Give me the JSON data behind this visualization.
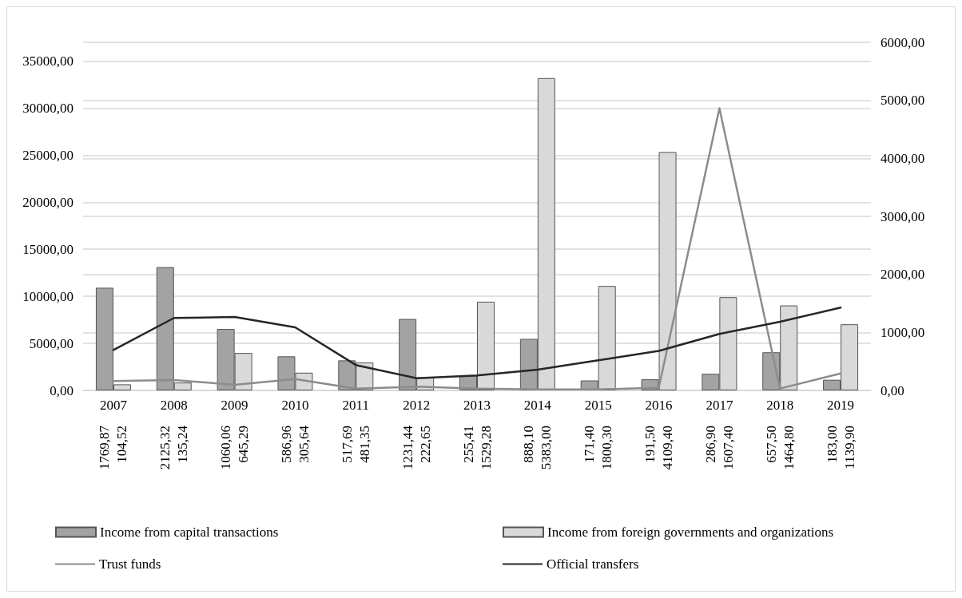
{
  "chart_data": {
    "type": "bar",
    "categories": [
      "2007",
      "2008",
      "2009",
      "2010",
      "2011",
      "2012",
      "2013",
      "2014",
      "2015",
      "2016",
      "2017",
      "2018",
      "2019"
    ],
    "series": [
      {
        "name": "Income from capital transactions",
        "axis": "y2",
        "color": "#a3a3a3",
        "values": [
          1769.87,
          2125.32,
          1060.06,
          586.96,
          517.69,
          1231.44,
          255.41,
          888.1,
          171.4,
          191.5,
          286.9,
          657.5,
          183.0
        ],
        "value_labels": [
          "1769,87",
          "2125,32",
          "1060,06",
          "586,96",
          "517,69",
          "1231,44",
          "255,41",
          "888,10",
          "171,40",
          "191,50",
          "286,90",
          "657,50",
          "183,00"
        ]
      },
      {
        "name": "Income from foreign governments and organizations",
        "axis": "y2",
        "color": "#d9d9d9",
        "values": [
          104.52,
          135.24,
          645.29,
          305.64,
          481.35,
          222.65,
          1529.28,
          5383.0,
          1800.3,
          4109.4,
          1607.4,
          1464.8,
          1139.9
        ],
        "value_labels": [
          "104,52",
          "135,24",
          "645,29",
          "305,64",
          "481,35",
          "222,65",
          "1529,28",
          "5383,00",
          "1800,30",
          "4109,40",
          "1607,40",
          "1464,80",
          "1139,90"
        ]
      },
      {
        "name": "Trust funds",
        "type": "line",
        "color": "#8c8c8c",
        "values": [
          1000,
          1100,
          600,
          1200,
          200,
          400,
          200,
          100,
          100,
          300,
          30000,
          200,
          1800
        ]
      },
      {
        "name": "Official transfers",
        "type": "line",
        "color": "#262626",
        "values": [
          4300,
          7700,
          7800,
          6700,
          2700,
          1300,
          1600,
          2200,
          3200,
          4200,
          6000,
          7300,
          8800
        ]
      }
    ],
    "ylim": [
      0,
      37000
    ],
    "yticks": [
      {
        "value": 0,
        "label": "0,00"
      },
      {
        "value": 5000,
        "label": "5000,00"
      },
      {
        "value": 10000,
        "label": "10000,00"
      },
      {
        "value": 15000,
        "label": "15000,00"
      },
      {
        "value": 20000,
        "label": "20000,00"
      },
      {
        "value": 25000,
        "label": "25000,00"
      },
      {
        "value": 30000,
        "label": "30000,00"
      },
      {
        "value": 35000,
        "label": "35000,00"
      }
    ],
    "y2lim": [
      0,
      6000
    ],
    "y2ticks": [
      {
        "value": 0,
        "label": "0,00"
      },
      {
        "value": 1000,
        "label": "1000,00"
      },
      {
        "value": 2000,
        "label": "2000,00"
      },
      {
        "value": 3000,
        "label": "3000,00"
      },
      {
        "value": 4000,
        "label": "4000,00"
      },
      {
        "value": 5000,
        "label": "5000,00"
      },
      {
        "value": 6000,
        "label": "6000,00"
      }
    ],
    "grid": "y",
    "legend": "bottom",
    "marker": "none",
    "line_style": "solid"
  }
}
